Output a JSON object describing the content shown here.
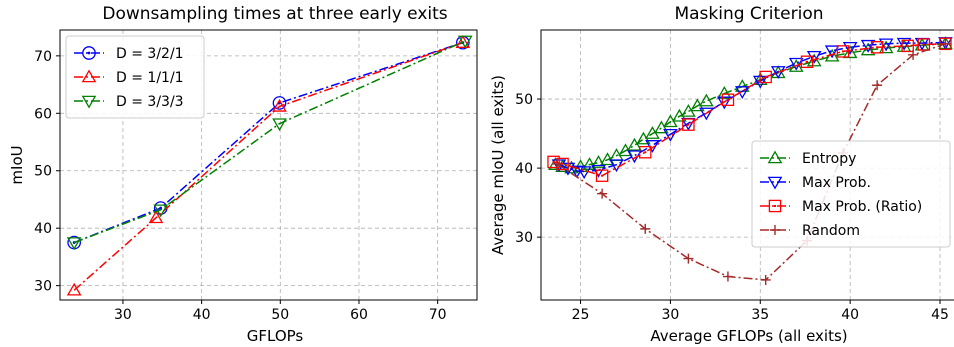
{
  "chart_data": [
    {
      "type": "line",
      "title": "Downsampling times at three early exits",
      "xlabel": "GFLOPs",
      "ylabel": "mIoU",
      "xlim": [
        22,
        75
      ],
      "ylim": [
        27.5,
        74.5
      ],
      "xticks": [
        30,
        40,
        50,
        60,
        70
      ],
      "yticks": [
        30,
        40,
        50,
        60,
        70
      ],
      "grid": true,
      "legend_position": "top-left",
      "series": [
        {
          "name": "D = 3/2/1",
          "color": "#0000ff",
          "marker": "circle",
          "linestyle": "dashdot",
          "x": [
            23.8,
            34.8,
            49.9,
            73.2
          ],
          "y": [
            37.5,
            43.5,
            61.8,
            72.3
          ]
        },
        {
          "name": "D = 1/1/1",
          "color": "#ff0000",
          "marker": "triangle-up",
          "linestyle": "dashdot",
          "x": [
            23.8,
            34.2,
            49.9,
            73.2
          ],
          "y": [
            29.2,
            41.8,
            61.2,
            72.3
          ]
        },
        {
          "name": "D = 3/3/3",
          "color": "#008000",
          "marker": "triangle-down",
          "linestyle": "dashdot",
          "x": [
            23.8,
            34.8,
            49.9,
            73.5
          ],
          "y": [
            37.5,
            43.2,
            58.2,
            72.6
          ]
        }
      ]
    },
    {
      "type": "line",
      "title": "Masking Criterion",
      "xlabel": "Average GFLOPs (all exits)",
      "ylabel": "Average mIoU (all exits)",
      "xlim": [
        22.8,
        46.0
      ],
      "ylim": [
        20.9,
        60.0
      ],
      "xticks": [
        25,
        30,
        35,
        40,
        45
      ],
      "yticks": [
        30,
        40,
        50
      ],
      "grid": true,
      "legend_position": "center-right",
      "series": [
        {
          "name": "Entropy",
          "color": "#008000",
          "marker": "triangle-up",
          "linestyle": "dashdot",
          "x": [
            23.6,
            24.0,
            24.5,
            25.0,
            25.5,
            26.0,
            26.5,
            27.0,
            27.5,
            28.0,
            28.5,
            29.0,
            29.5,
            30.0,
            30.5,
            31.0,
            31.5,
            32.0,
            33.0,
            34.0,
            35.0,
            36.0,
            37.0,
            38.0,
            39.0,
            40.0,
            41.0,
            42.0,
            43.0,
            44.0,
            45.3
          ],
          "y": [
            40.5,
            40.2,
            40.0,
            40.2,
            40.5,
            40.8,
            41.2,
            41.8,
            42.5,
            43.3,
            44.2,
            45.0,
            45.8,
            46.7,
            47.5,
            48.2,
            49.0,
            49.7,
            50.8,
            51.8,
            52.8,
            53.8,
            54.7,
            55.5,
            56.2,
            56.7,
            57.1,
            57.4,
            57.6,
            57.8,
            58.0
          ]
        },
        {
          "name": "Max Prob.",
          "color": "#0000ff",
          "marker": "triangle-down",
          "linestyle": "dashdot",
          "x": [
            23.8,
            24.3,
            24.8,
            25.2,
            26.0,
            27.0,
            28.0,
            29.0,
            30.0,
            31.0,
            32.0,
            33.0,
            34.0,
            35.0,
            36.0,
            37.0,
            38.0,
            39.0,
            40.0,
            41.0,
            42.0,
            43.0,
            44.0,
            45.3
          ],
          "y": [
            40.5,
            40.0,
            39.6,
            39.5,
            39.7,
            40.5,
            41.8,
            43.3,
            44.9,
            46.5,
            48.0,
            49.6,
            51.1,
            52.6,
            54.0,
            55.2,
            56.2,
            57.0,
            57.5,
            57.8,
            58.0,
            58.1,
            58.1,
            58.2
          ]
        },
        {
          "name": "Max Prob. (Ratio)",
          "color": "#ff0000",
          "marker": "square-dot",
          "linestyle": "dashdot",
          "x": [
            23.5,
            24.0,
            26.2,
            28.6,
            31.0,
            33.2,
            35.3,
            37.6,
            39.6,
            41.5,
            43.2,
            44.1,
            45.3
          ],
          "y": [
            40.9,
            40.6,
            38.9,
            42.3,
            46.3,
            49.9,
            53.2,
            55.4,
            56.9,
            57.5,
            57.7,
            57.9,
            58.0
          ]
        },
        {
          "name": "Random",
          "color": "#a52a2a",
          "marker": "plus",
          "linestyle": "dashdot",
          "x": [
            23.7,
            26.2,
            28.6,
            31.0,
            33.2,
            35.3,
            37.6,
            39.6,
            41.5,
            43.5,
            45.3
          ],
          "y": [
            40.6,
            36.3,
            31.2,
            26.9,
            24.3,
            23.8,
            29.5,
            42.2,
            52.0,
            56.4,
            58.0
          ]
        }
      ]
    }
  ]
}
